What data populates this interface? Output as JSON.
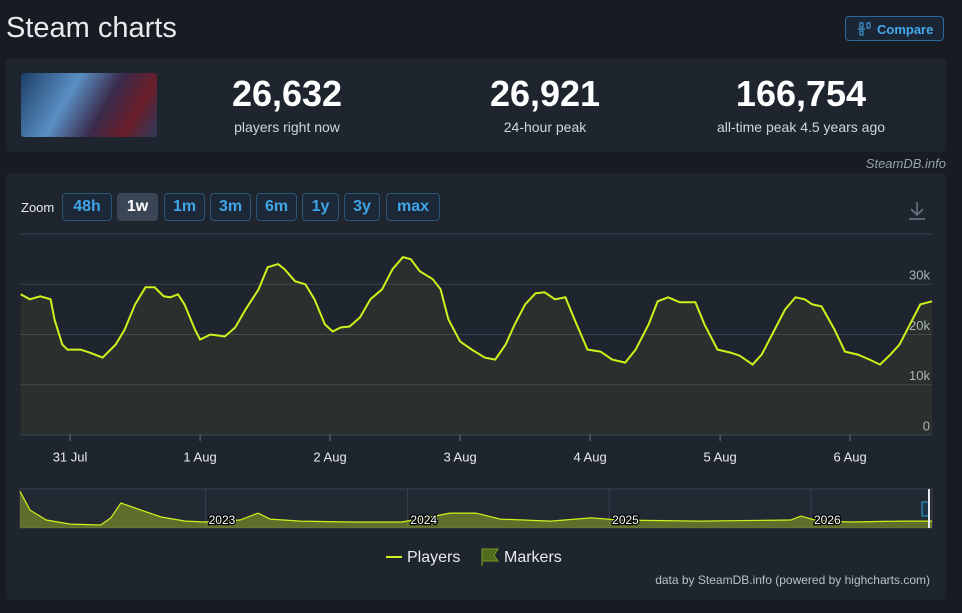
{
  "header": {
    "title": "Steam charts",
    "compare": "Compare",
    "source": "SteamDB.info"
  },
  "stats": [
    {
      "value": "26,632",
      "label": "players right now"
    },
    {
      "value": "26,921",
      "label": "24-hour peak"
    },
    {
      "value": "166,754",
      "label": "all-time peak 4.5 years ago"
    }
  ],
  "zoom": {
    "label": "Zoom",
    "options": [
      "48h",
      "1w",
      "1m",
      "3m",
      "6m",
      "1y",
      "3y",
      "max"
    ],
    "active": "1w"
  },
  "chart_data": [
    {
      "type": "line",
      "x": [
        -0.38,
        -0.31,
        -0.23,
        -0.15,
        -0.12,
        -0.06,
        -0.02,
        0.08,
        0.15,
        0.25,
        0.35,
        0.42,
        0.5,
        0.58,
        0.65,
        0.72,
        0.77,
        0.83,
        0.88,
        0.96,
        1.0,
        1.08,
        1.19,
        1.27,
        1.35,
        1.45,
        1.52,
        1.6,
        1.65,
        1.73,
        1.81,
        1.88,
        1.96,
        2.02,
        2.08,
        2.15,
        2.23,
        2.31,
        2.4,
        2.48,
        2.56,
        2.62,
        2.69,
        2.79,
        2.85,
        2.91,
        3.0,
        3.09,
        3.19,
        3.27,
        3.35,
        3.42,
        3.5,
        3.58,
        3.65,
        3.73,
        3.81,
        3.88,
        3.98,
        4.08,
        4.17,
        4.27,
        4.35,
        4.45,
        4.52,
        4.6,
        4.69,
        4.81,
        4.88,
        4.98,
        5.08,
        5.15,
        5.25,
        5.32,
        5.42,
        5.5,
        5.58,
        5.65,
        5.71,
        5.78,
        5.88,
        5.96,
        6.06,
        6.15,
        6.23,
        6.31,
        6.38,
        6.46,
        6.54,
        6.63
      ],
      "series": [
        {
          "name": "Players",
          "color": "#cdf21c",
          "values": [
            28000,
            27000,
            27600,
            27000,
            23000,
            18000,
            17000,
            17000,
            16400,
            15400,
            18000,
            21000,
            26000,
            29400,
            29400,
            27600,
            27400,
            28000,
            26000,
            21000,
            19000,
            20000,
            19600,
            21400,
            25000,
            29000,
            33400,
            34000,
            33000,
            30600,
            30000,
            27000,
            22000,
            20600,
            21400,
            21600,
            23400,
            27000,
            29000,
            33000,
            35400,
            35000,
            32600,
            31000,
            29000,
            23000,
            18600,
            17000,
            15400,
            15000,
            18000,
            22000,
            26000,
            28200,
            28400,
            27000,
            27400,
            23000,
            17000,
            16600,
            15000,
            14400,
            17000,
            22000,
            26600,
            27400,
            26400,
            26400,
            22000,
            17000,
            16400,
            15800,
            14000,
            16000,
            21000,
            25000,
            27400,
            27000,
            26000,
            25600,
            21000,
            16600,
            16000,
            15000,
            14000,
            16000,
            18000,
            22000,
            26000,
            26600
          ]
        }
      ],
      "xlim": [
        -0.385,
        6.63
      ],
      "xticks": [
        {
          "value": 0,
          "label": "31 Jul"
        },
        {
          "value": 1,
          "label": "1 Aug"
        },
        {
          "value": 2,
          "label": "2 Aug"
        },
        {
          "value": 3,
          "label": "3 Aug"
        },
        {
          "value": 4,
          "label": "4 Aug"
        },
        {
          "value": 5,
          "label": "5 Aug"
        },
        {
          "value": 6,
          "label": "6 Aug"
        }
      ],
      "ylim": [
        0,
        40000
      ],
      "yticks": [
        0,
        {
          "value": 10000,
          "label": "10k"
        },
        {
          "value": 20000,
          "label": "20k"
        },
        {
          "value": 30000,
          "label": "30k"
        }
      ],
      "grid": true,
      "marker_legend": {
        "name": "Markers",
        "color": "#4f6b1c"
      }
    },
    {
      "type": "area",
      "x": [
        2022.08,
        2022.13,
        2022.21,
        2022.33,
        2022.48,
        2022.53,
        2022.58,
        2022.65,
        2022.78,
        2022.9,
        2023.0,
        2023.17,
        2023.26,
        2023.32,
        2023.47,
        2023.72,
        2023.97,
        2024.06,
        2024.21,
        2024.34,
        2024.46,
        2024.71,
        2024.91,
        2025.05,
        2025.45,
        2025.9,
        2025.95,
        2026.02,
        2026.19,
        2026.44,
        2026.6
      ],
      "series": [
        {
          "color": "#cdf21c",
          "values": [
            160000,
            78000,
            35000,
            17000,
            13000,
            44000,
            109000,
            87000,
            48000,
            30000,
            26000,
            35000,
            65000,
            39000,
            30000,
            26000,
            26000,
            39000,
            65000,
            65000,
            39000,
            30000,
            44000,
            35000,
            30000,
            35000,
            52000,
            35000,
            26000,
            30000,
            30000
          ]
        }
      ],
      "xlim": [
        2022.08,
        2026.6
      ],
      "ylim": [
        0,
        170000
      ],
      "xticks": [
        2023,
        2024,
        2025,
        2026
      ]
    }
  ],
  "footer": "data by SteamDB.info (powered by highcharts.com)"
}
